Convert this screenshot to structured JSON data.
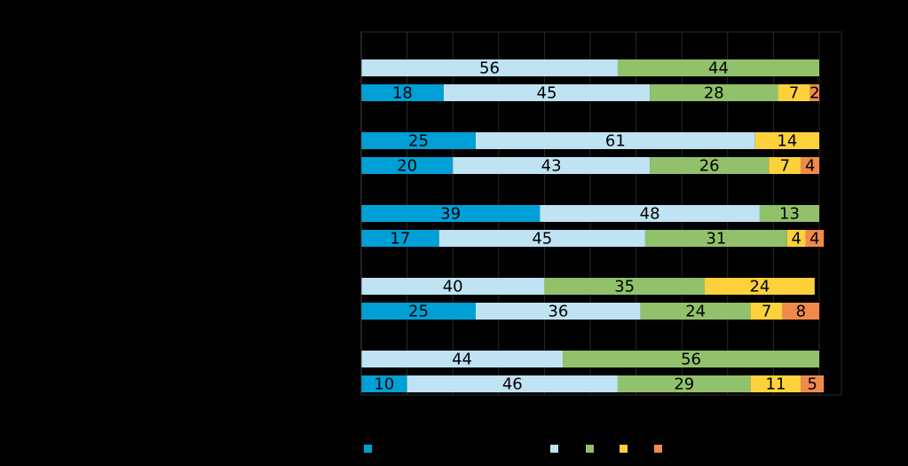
{
  "chart_data": {
    "type": "bar",
    "orientation": "horizontal",
    "stacked": true,
    "percent_scale": true,
    "xlim": [
      0,
      100
    ],
    "grid": true,
    "legend_position": "bottom",
    "series_colors": [
      "#00a0d6",
      "#bfe3f3",
      "#92c16c",
      "#fcd13b",
      "#f08a4b"
    ],
    "bars": [
      {
        "values": [
          0,
          56,
          44,
          0,
          0
        ]
      },
      {
        "values": [
          18,
          45,
          28,
          7,
          2
        ]
      },
      {
        "values": [
          25,
          61,
          0,
          14,
          0
        ]
      },
      {
        "values": [
          20,
          43,
          26,
          7,
          4
        ]
      },
      {
        "values": [
          39,
          48,
          13,
          0,
          0
        ]
      },
      {
        "values": [
          17,
          45,
          31,
          4,
          4
        ]
      },
      {
        "values": [
          0,
          40,
          35,
          24,
          0
        ]
      },
      {
        "values": [
          25,
          36,
          24,
          7,
          8
        ]
      },
      {
        "values": [
          0,
          44,
          56,
          0,
          0
        ]
      },
      {
        "values": [
          10,
          46,
          29,
          11,
          5
        ]
      }
    ]
  }
}
